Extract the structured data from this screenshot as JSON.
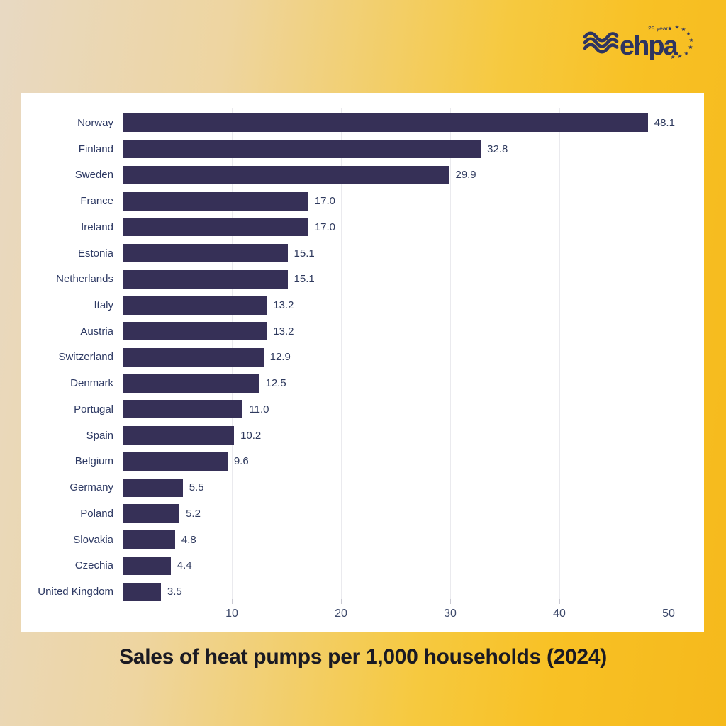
{
  "title": "Sales of heat pumps per 1,000 households (2024)",
  "logo": {
    "brand": "ehpa",
    "badge": "25 years"
  },
  "colors": {
    "bar": "#363057",
    "label": "#2e3a64",
    "value": "#2f3a5e",
    "tick": "#3e4a6b",
    "gridline": "#eaeaee",
    "title": "#1a1a23",
    "logo_navy": "#2e3460",
    "panel_background": "#ffffff",
    "background_left": "#e8d9c3",
    "background_right": "#f5b91c"
  },
  "chart_data": {
    "type": "bar",
    "orientation": "horizontal",
    "title": "Sales of heat pumps per 1,000 households (2024)",
    "categories": [
      "Norway",
      "Finland",
      "Sweden",
      "France",
      "Ireland",
      "Estonia",
      "Netherlands",
      "Italy",
      "Austria",
      "Switzerland",
      "Denmark",
      "Portugal",
      "Spain",
      "Belgium",
      "Germany",
      "Poland",
      "Slovakia",
      "Czechia",
      "United Kingdom"
    ],
    "values": [
      48.1,
      32.8,
      29.9,
      17.0,
      17.0,
      15.1,
      15.1,
      13.2,
      13.2,
      12.9,
      12.5,
      11.0,
      10.2,
      9.6,
      5.5,
      5.2,
      4.8,
      4.4,
      3.5
    ],
    "value_labels": [
      "48.1",
      "32.8",
      "29.9",
      "17.0",
      "17.0",
      "15.1",
      "15.1",
      "13.2",
      "13.2",
      "12.9",
      "12.5",
      "11.0",
      "10.2",
      "9.6",
      "5.5",
      "5.2",
      "4.8",
      "4.4",
      "3.5"
    ],
    "xlabel": "",
    "ylabel": "",
    "xticks": [
      10,
      20,
      30,
      40,
      50
    ],
    "xlim": [
      0,
      53.2
    ],
    "grid": true,
    "legend_position": "none",
    "value_labels_shown": true
  }
}
